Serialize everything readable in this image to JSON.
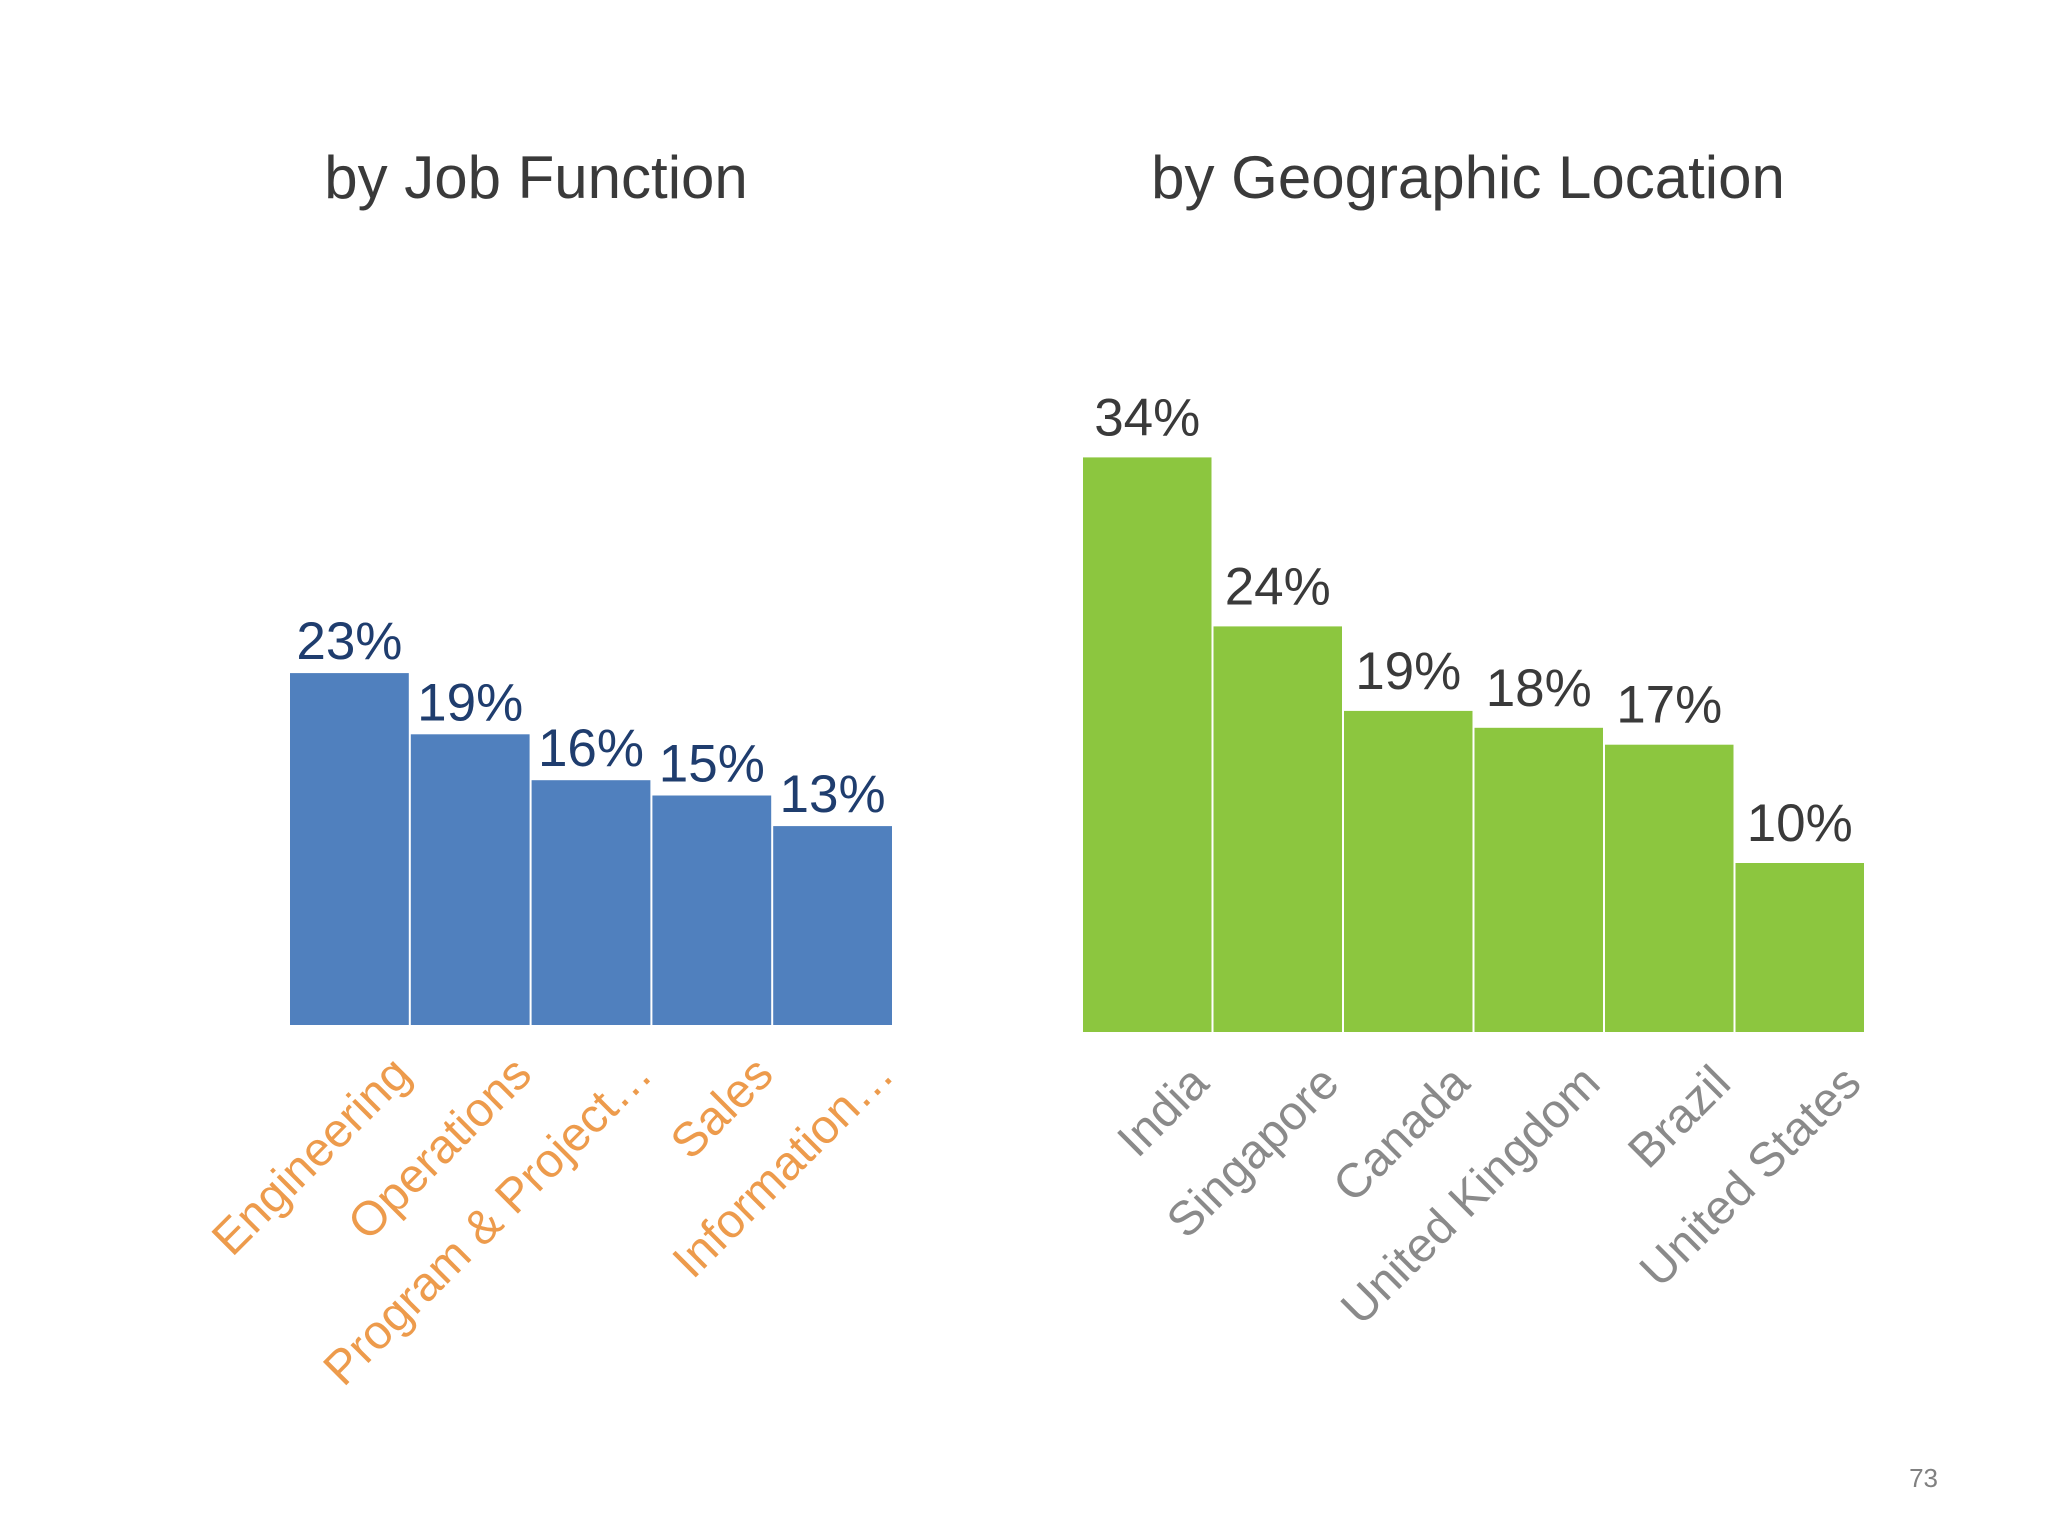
{
  "charts": [
    {
      "chart_data": {
        "type": "bar",
        "title": "by Job Function",
        "categories": [
          "Engineering",
          "Operations",
          "Program & Project…",
          "Sales",
          "Information…"
        ],
        "values": [
          23,
          19,
          16,
          15,
          13
        ],
        "value_labels": [
          "23%",
          "19%",
          "16%",
          "15%",
          "13%"
        ],
        "unit": "%",
        "ylim": [
          0,
          34
        ],
        "grid": false,
        "legend": "none"
      },
      "colors": {
        "bar": "#5080be",
        "value_label": "#1f3d6e",
        "category_label": "#ed9b4c"
      }
    },
    {
      "chart_data": {
        "type": "bar",
        "title": "by Geographic Location",
        "categories": [
          "India",
          "Singapore",
          "Canada",
          "United Kingdom",
          "Brazil",
          "United States"
        ],
        "values": [
          34,
          24,
          19,
          18,
          17,
          10
        ],
        "value_labels": [
          "34%",
          "24%",
          "19%",
          "18%",
          "17%",
          "10%"
        ],
        "unit": "%",
        "ylim": [
          0,
          34
        ],
        "grid": false,
        "legend": "none"
      },
      "colors": {
        "bar": "#8cc63f",
        "value_label": "#3a3a3a",
        "category_label": "#8a8a8a"
      }
    }
  ],
  "page_number": "73"
}
